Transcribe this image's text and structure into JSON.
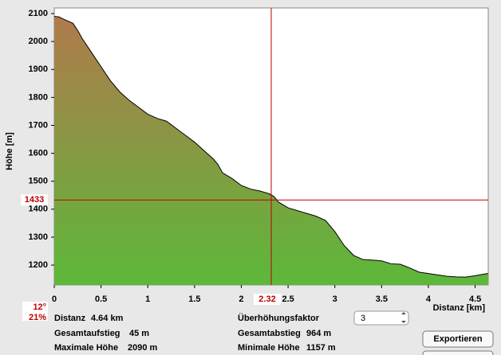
{
  "chart_data": {
    "type": "area",
    "ylabel": "Höhe [m]",
    "xlabel": "Distanz [km]",
    "xlim": [
      0,
      4.64
    ],
    "ylim": [
      1129,
      2120
    ],
    "xticks": [
      0,
      0.5,
      1,
      1.5,
      2,
      2.5,
      3,
      3.5,
      4,
      4.5
    ],
    "yticks": [
      1200,
      1300,
      1400,
      1500,
      1600,
      1700,
      1800,
      1900,
      2000,
      2100
    ],
    "x": [
      0,
      0.05,
      0.1,
      0.2,
      0.25,
      0.3,
      0.4,
      0.5,
      0.6,
      0.7,
      0.8,
      0.9,
      1.0,
      1.1,
      1.2,
      1.3,
      1.4,
      1.5,
      1.6,
      1.7,
      1.75,
      1.8,
      1.9,
      2.0,
      2.1,
      2.2,
      2.3,
      2.35,
      2.4,
      2.5,
      2.6,
      2.7,
      2.8,
      2.9,
      3.0,
      3.1,
      3.2,
      3.3,
      3.4,
      3.5,
      3.6,
      3.7,
      3.8,
      3.9,
      4.0,
      4.1,
      4.2,
      4.3,
      4.4,
      4.5,
      4.6,
      4.64
    ],
    "series": [
      {
        "colors": [
          "#b07a4c",
          "#5cb83a"
        ],
        "values": [
          2090,
          2088,
          2080,
          2065,
          2040,
          2010,
          1960,
          1910,
          1860,
          1820,
          1790,
          1765,
          1740,
          1725,
          1715,
          1690,
          1665,
          1640,
          1610,
          1580,
          1560,
          1530,
          1510,
          1485,
          1472,
          1465,
          1455,
          1445,
          1425,
          1405,
          1395,
          1385,
          1375,
          1360,
          1320,
          1270,
          1235,
          1220,
          1218,
          1215,
          1205,
          1203,
          1190,
          1175,
          1170,
          1165,
          1160,
          1158,
          1157,
          1162,
          1168,
          1170
        ]
      }
    ],
    "crosshair": {
      "x": 2.32,
      "y": 1433,
      "color": "#c00000"
    }
  },
  "info": {
    "angle": "12°",
    "slope": "21%",
    "distance": {
      "label": "Distanz",
      "value": "4.64 km"
    },
    "ascent": {
      "label": "Gesamtaufstieg",
      "value": "45 m"
    },
    "max": {
      "label": "Maximale Höhe",
      "value": "2090 m"
    },
    "factor": {
      "label": "Überhöhungsfaktor",
      "value": "3"
    },
    "descent": {
      "label": "Gesamtabstieg",
      "value": "964 m"
    },
    "min": {
      "label": "Minimale Höhe",
      "value": "1157 m"
    },
    "button": "Exportieren"
  }
}
